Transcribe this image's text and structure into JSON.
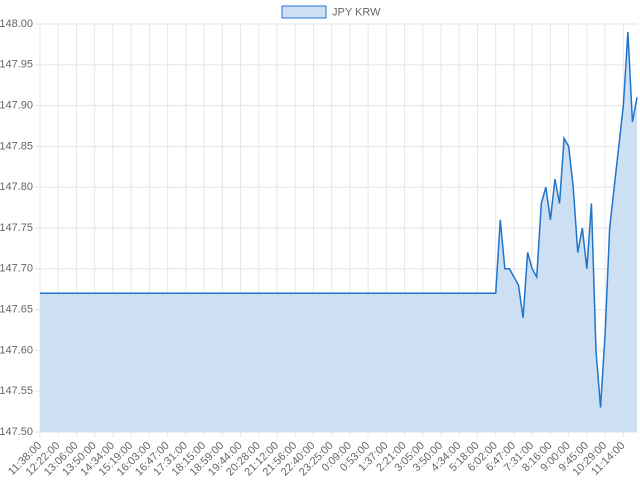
{
  "chart_data": {
    "type": "area",
    "categories": [
      "11:38:00",
      null,
      null,
      null,
      "12:22:00",
      null,
      null,
      null,
      "13:06:00",
      null,
      null,
      null,
      "13:50:00",
      null,
      null,
      null,
      "14:34:00",
      null,
      null,
      null,
      "15:19:00",
      null,
      null,
      null,
      "16:03:00",
      null,
      null,
      null,
      "16:47:00",
      null,
      null,
      null,
      "17:31:00",
      null,
      null,
      null,
      "18:15:00",
      null,
      null,
      null,
      "18:59:00",
      null,
      null,
      null,
      "19:44:00",
      null,
      null,
      null,
      "20:28:00",
      null,
      null,
      null,
      "21:12:00",
      null,
      null,
      null,
      "21:56:00",
      null,
      null,
      null,
      "22:40:00",
      null,
      null,
      null,
      "23:25:00",
      null,
      null,
      null,
      "0:09:00",
      null,
      null,
      null,
      "0:53:00",
      null,
      null,
      null,
      "1:37:00",
      null,
      null,
      null,
      "2:21:00",
      null,
      null,
      null,
      "3:05:00",
      null,
      null,
      null,
      "3:50:00",
      null,
      null,
      null,
      "4:34:00",
      null,
      null,
      null,
      "5:18:00",
      null,
      null,
      null,
      "6:02:00",
      null,
      null,
      null,
      "6:47:00",
      null,
      null,
      null,
      "7:31:00",
      null,
      null,
      null,
      "8:16:00",
      null,
      null,
      null,
      "9:00:00",
      null,
      null,
      null,
      "9:45:00",
      null,
      null,
      null,
      "10:29:00",
      null,
      null,
      null,
      "11:14:00",
      null,
      null,
      null
    ],
    "series": [
      {
        "name": "JPY KRW",
        "color": "#1f74cc",
        "fill": "#cde0f3",
        "values": [
          147.67,
          147.67,
          147.67,
          147.67,
          147.67,
          147.67,
          147.67,
          147.67,
          147.67,
          147.67,
          147.67,
          147.67,
          147.67,
          147.67,
          147.67,
          147.67,
          147.67,
          147.67,
          147.67,
          147.67,
          147.67,
          147.67,
          147.67,
          147.67,
          147.67,
          147.67,
          147.67,
          147.67,
          147.67,
          147.67,
          147.67,
          147.67,
          147.67,
          147.67,
          147.67,
          147.67,
          147.67,
          147.67,
          147.67,
          147.67,
          147.67,
          147.67,
          147.67,
          147.67,
          147.67,
          147.67,
          147.67,
          147.67,
          147.67,
          147.67,
          147.67,
          147.67,
          147.67,
          147.67,
          147.67,
          147.67,
          147.67,
          147.67,
          147.67,
          147.67,
          147.67,
          147.67,
          147.67,
          147.67,
          147.67,
          147.67,
          147.67,
          147.67,
          147.67,
          147.67,
          147.67,
          147.67,
          147.67,
          147.67,
          147.67,
          147.67,
          147.67,
          147.67,
          147.67,
          147.67,
          147.67,
          147.67,
          147.67,
          147.67,
          147.67,
          147.67,
          147.67,
          147.67,
          147.67,
          147.67,
          147.67,
          147.67,
          147.67,
          147.67,
          147.67,
          147.67,
          147.67,
          147.67,
          147.67,
          147.67,
          147.67,
          147.76,
          147.7,
          147.7,
          147.69,
          147.68,
          147.64,
          147.72,
          147.7,
          147.69,
          147.78,
          147.8,
          147.76,
          147.81,
          147.78,
          147.86,
          147.85,
          147.8,
          147.72,
          147.75,
          147.7,
          147.78,
          147.6,
          147.53,
          147.62,
          147.75,
          147.8,
          147.85,
          147.9,
          147.99,
          147.88,
          147.91
        ]
      }
    ],
    "ylim": [
      147.5,
      148.0
    ],
    "yticks": [
      {
        "value": 147.5,
        "label": "147.50"
      },
      147.55,
      {
        "value": 147.6,
        "label": "147.60"
      },
      147.65,
      {
        "value": 147.7,
        "label": "147.70"
      },
      147.75,
      {
        "value": 147.8,
        "label": "147.80"
      },
      147.85,
      {
        "value": 147.9,
        "label": "147.90"
      },
      147.95,
      {
        "value": 148.0,
        "label": "148.00"
      }
    ],
    "grid": true,
    "legend": "top"
  }
}
